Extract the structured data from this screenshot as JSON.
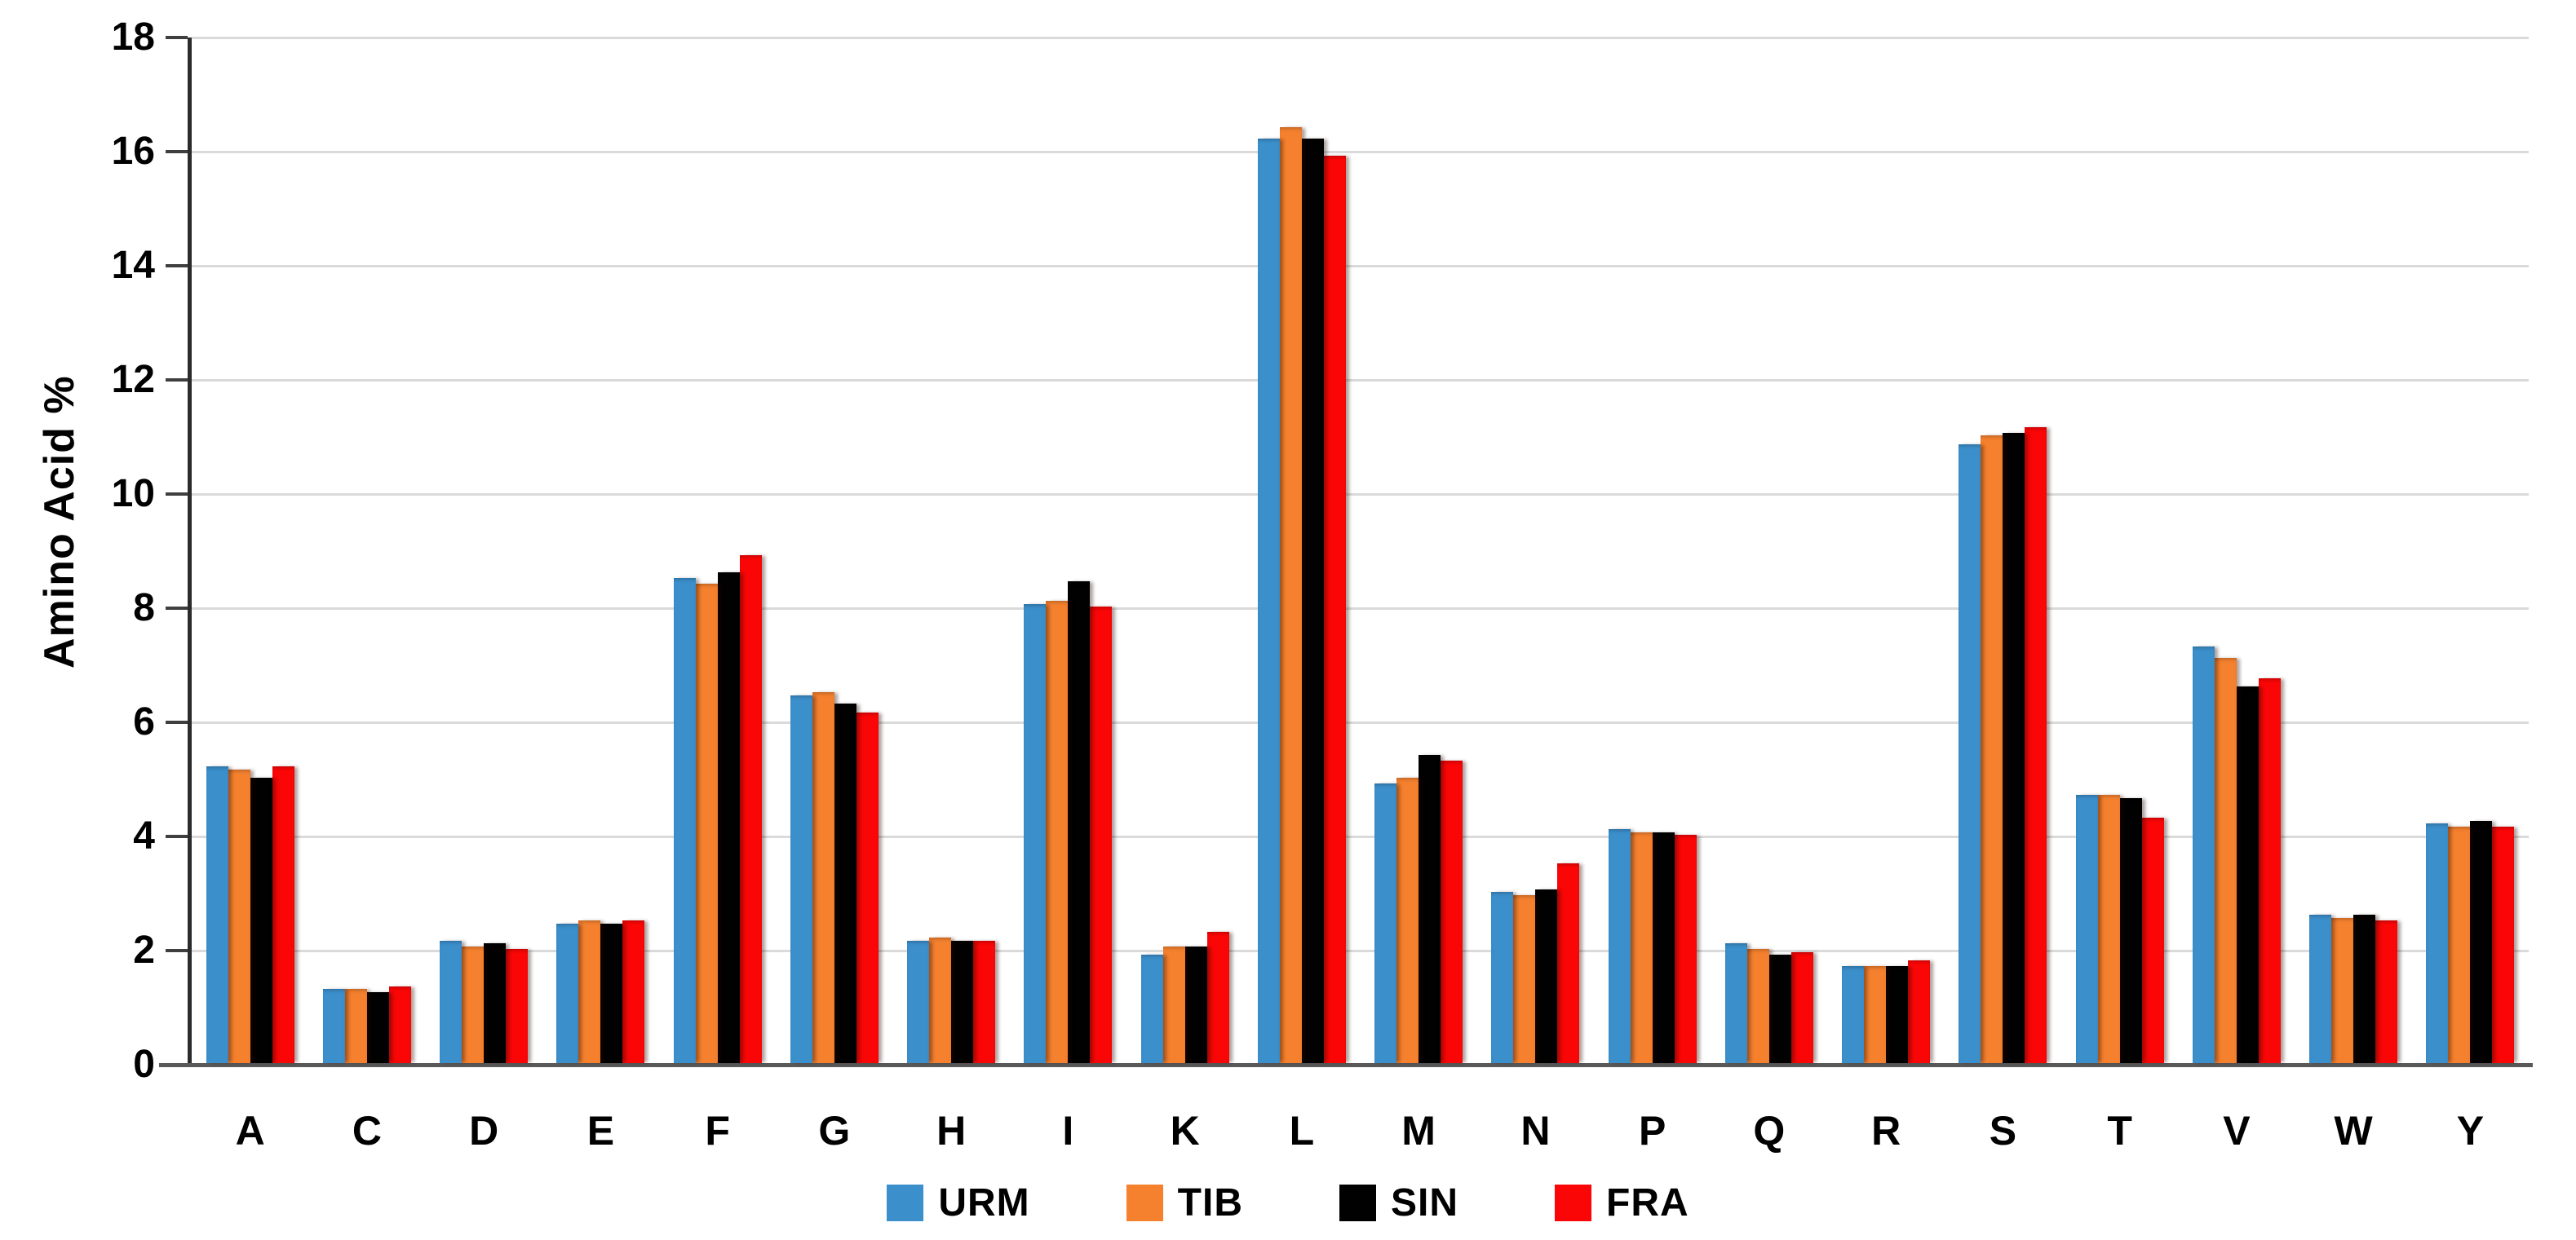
{
  "figure": {
    "background": "#ffffff",
    "axis_color": "#2b2b2b",
    "baseline_color": "#595959",
    "gridline_color": "#dadada"
  },
  "chart_data": {
    "type": "bar",
    "title": "",
    "xlabel": "",
    "ylabel": "Amino Acid %",
    "ylim": [
      0,
      18
    ],
    "yticks": [
      0,
      2,
      4,
      6,
      8,
      10,
      12,
      14,
      16,
      18
    ],
    "grid": true,
    "legend_position": "bottom-center",
    "categories": [
      "A",
      "C",
      "D",
      "E",
      "F",
      "G",
      "H",
      "I",
      "K",
      "L",
      "M",
      "N",
      "P",
      "Q",
      "R",
      "S",
      "T",
      "V",
      "W",
      "Y"
    ],
    "series": [
      {
        "name": "URM",
        "color": "#3b8fcb",
        "values": [
          5.2,
          1.3,
          2.15,
          2.45,
          8.5,
          6.45,
          2.15,
          8.05,
          1.9,
          16.2,
          4.9,
          3.0,
          4.1,
          2.1,
          1.7,
          10.85,
          4.7,
          7.3,
          2.6,
          4.2
        ]
      },
      {
        "name": "TIB",
        "color": "#f5812e",
        "values": [
          5.15,
          1.3,
          2.05,
          2.5,
          8.4,
          6.5,
          2.2,
          8.1,
          2.05,
          16.4,
          5.0,
          2.95,
          4.05,
          2.0,
          1.7,
          11.0,
          4.7,
          7.1,
          2.55,
          4.15
        ]
      },
      {
        "name": "SIN",
        "color": "#010101",
        "values": [
          5.0,
          1.25,
          2.1,
          2.45,
          8.6,
          6.3,
          2.15,
          8.45,
          2.05,
          16.2,
          5.4,
          3.05,
          4.05,
          1.9,
          1.7,
          11.05,
          4.65,
          6.6,
          2.6,
          4.25
        ]
      },
      {
        "name": "FRA",
        "color": "#fa0606",
        "values": [
          5.2,
          1.35,
          2.0,
          2.5,
          8.9,
          6.15,
          2.15,
          8.0,
          2.3,
          15.9,
          5.3,
          3.5,
          4.0,
          1.95,
          1.8,
          11.15,
          4.3,
          6.75,
          2.5,
          4.15
        ]
      }
    ]
  }
}
